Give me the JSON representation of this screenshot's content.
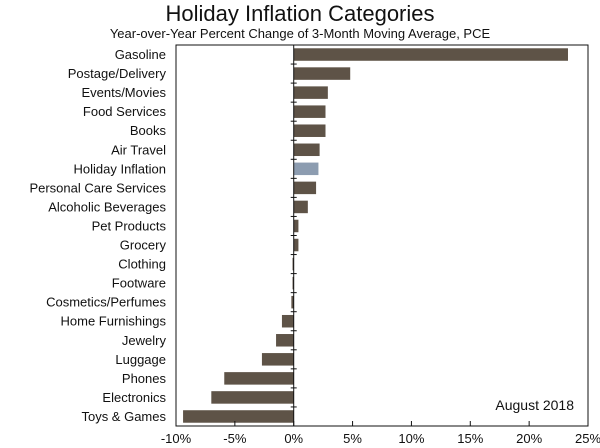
{
  "chart_data": {
    "type": "bar",
    "orientation": "horizontal",
    "title": "Holiday Inflation Categories",
    "subtitle": "Year-over-Year Percent Change of 3-Month Moving Average, PCE",
    "annotation": "August 2018",
    "categories": [
      "Gasoline",
      "Postage/Delivery",
      "Events/Movies",
      "Food Services",
      "Books",
      "Air Travel",
      "Holiday Inflation",
      "Personal Care Services",
      "Alcoholic Beverages",
      "Pet Products",
      "Grocery",
      "Clothing",
      "Footware",
      "Cosmetics/Perfumes",
      "Home Furnishings",
      "Jewelry",
      "Luggage",
      "Phones",
      "Electronics",
      "Toys & Games"
    ],
    "values": [
      23.3,
      4.8,
      2.9,
      2.7,
      2.7,
      2.2,
      2.1,
      1.9,
      1.2,
      0.4,
      0.4,
      -0.1,
      -0.1,
      -0.2,
      -1.0,
      -1.5,
      -2.7,
      -5.9,
      -7.0,
      -9.4
    ],
    "xlim": [
      -10,
      25
    ],
    "xticks": [
      -10,
      -5,
      0,
      5,
      10,
      15,
      20,
      25
    ],
    "xtick_labels": [
      "-10%",
      "-5%",
      "0%",
      "5%",
      "10%",
      "15%",
      "20%",
      "25%"
    ],
    "highlight_category": "Holiday Inflation",
    "colors": {
      "bar": "#5e5347",
      "highlight": "#8c9cb0"
    },
    "grid": false,
    "legend": "none"
  }
}
